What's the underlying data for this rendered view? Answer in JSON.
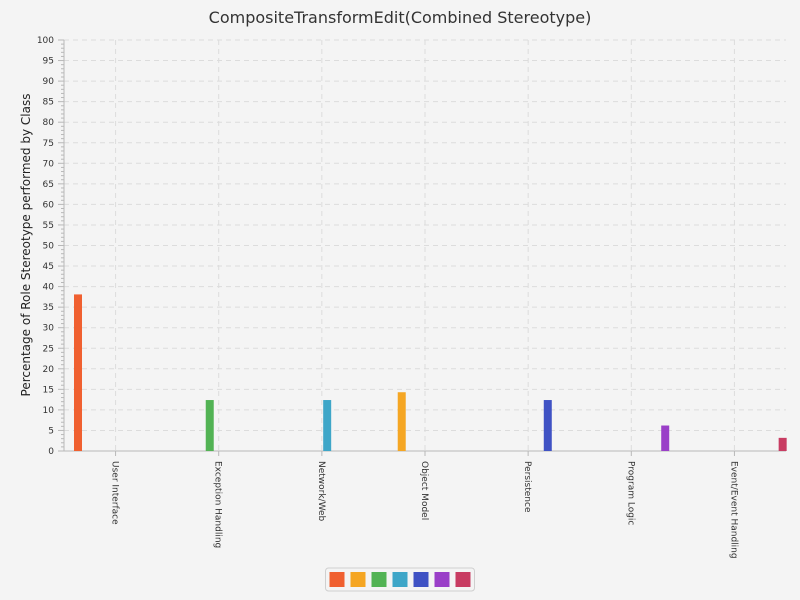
{
  "chart_data": {
    "type": "bar",
    "title": "CompositeTransformEdit(Combined Stereotype)",
    "xlabel": "",
    "ylabel": "Percentage of Role Stereotype performed by Class",
    "ylim": [
      0,
      100
    ],
    "ytick_step": 5,
    "grid": true,
    "legend_position": "bottom-center",
    "categories": [
      "User Interface",
      "Exception Handling",
      "Network/Web",
      "Object Model",
      "Persistence",
      "Program Logic",
      "Event/Event Handling"
    ],
    "series": [
      {
        "values": [
          38.1,
          0,
          0,
          0,
          0,
          0,
          0
        ],
        "color": "#f06030"
      },
      {
        "values": [
          0,
          0,
          0,
          14.3,
          0,
          0,
          0
        ],
        "color": "#f5a623"
      },
      {
        "values": [
          0,
          12.4,
          0,
          0,
          0,
          0,
          0
        ],
        "color": "#52b354"
      },
      {
        "values": [
          0,
          0,
          12.4,
          0,
          0,
          0,
          0
        ],
        "color": "#3ea6c8"
      },
      {
        "values": [
          0,
          0,
          0,
          0,
          12.4,
          0,
          0
        ],
        "color": "#3f52c4"
      },
      {
        "values": [
          0,
          0,
          0,
          0,
          0,
          6.2,
          0
        ],
        "color": "#9a3fc8"
      },
      {
        "values": [
          0,
          0,
          0,
          0,
          0,
          0,
          3.2
        ],
        "color": "#c83c62"
      }
    ]
  }
}
